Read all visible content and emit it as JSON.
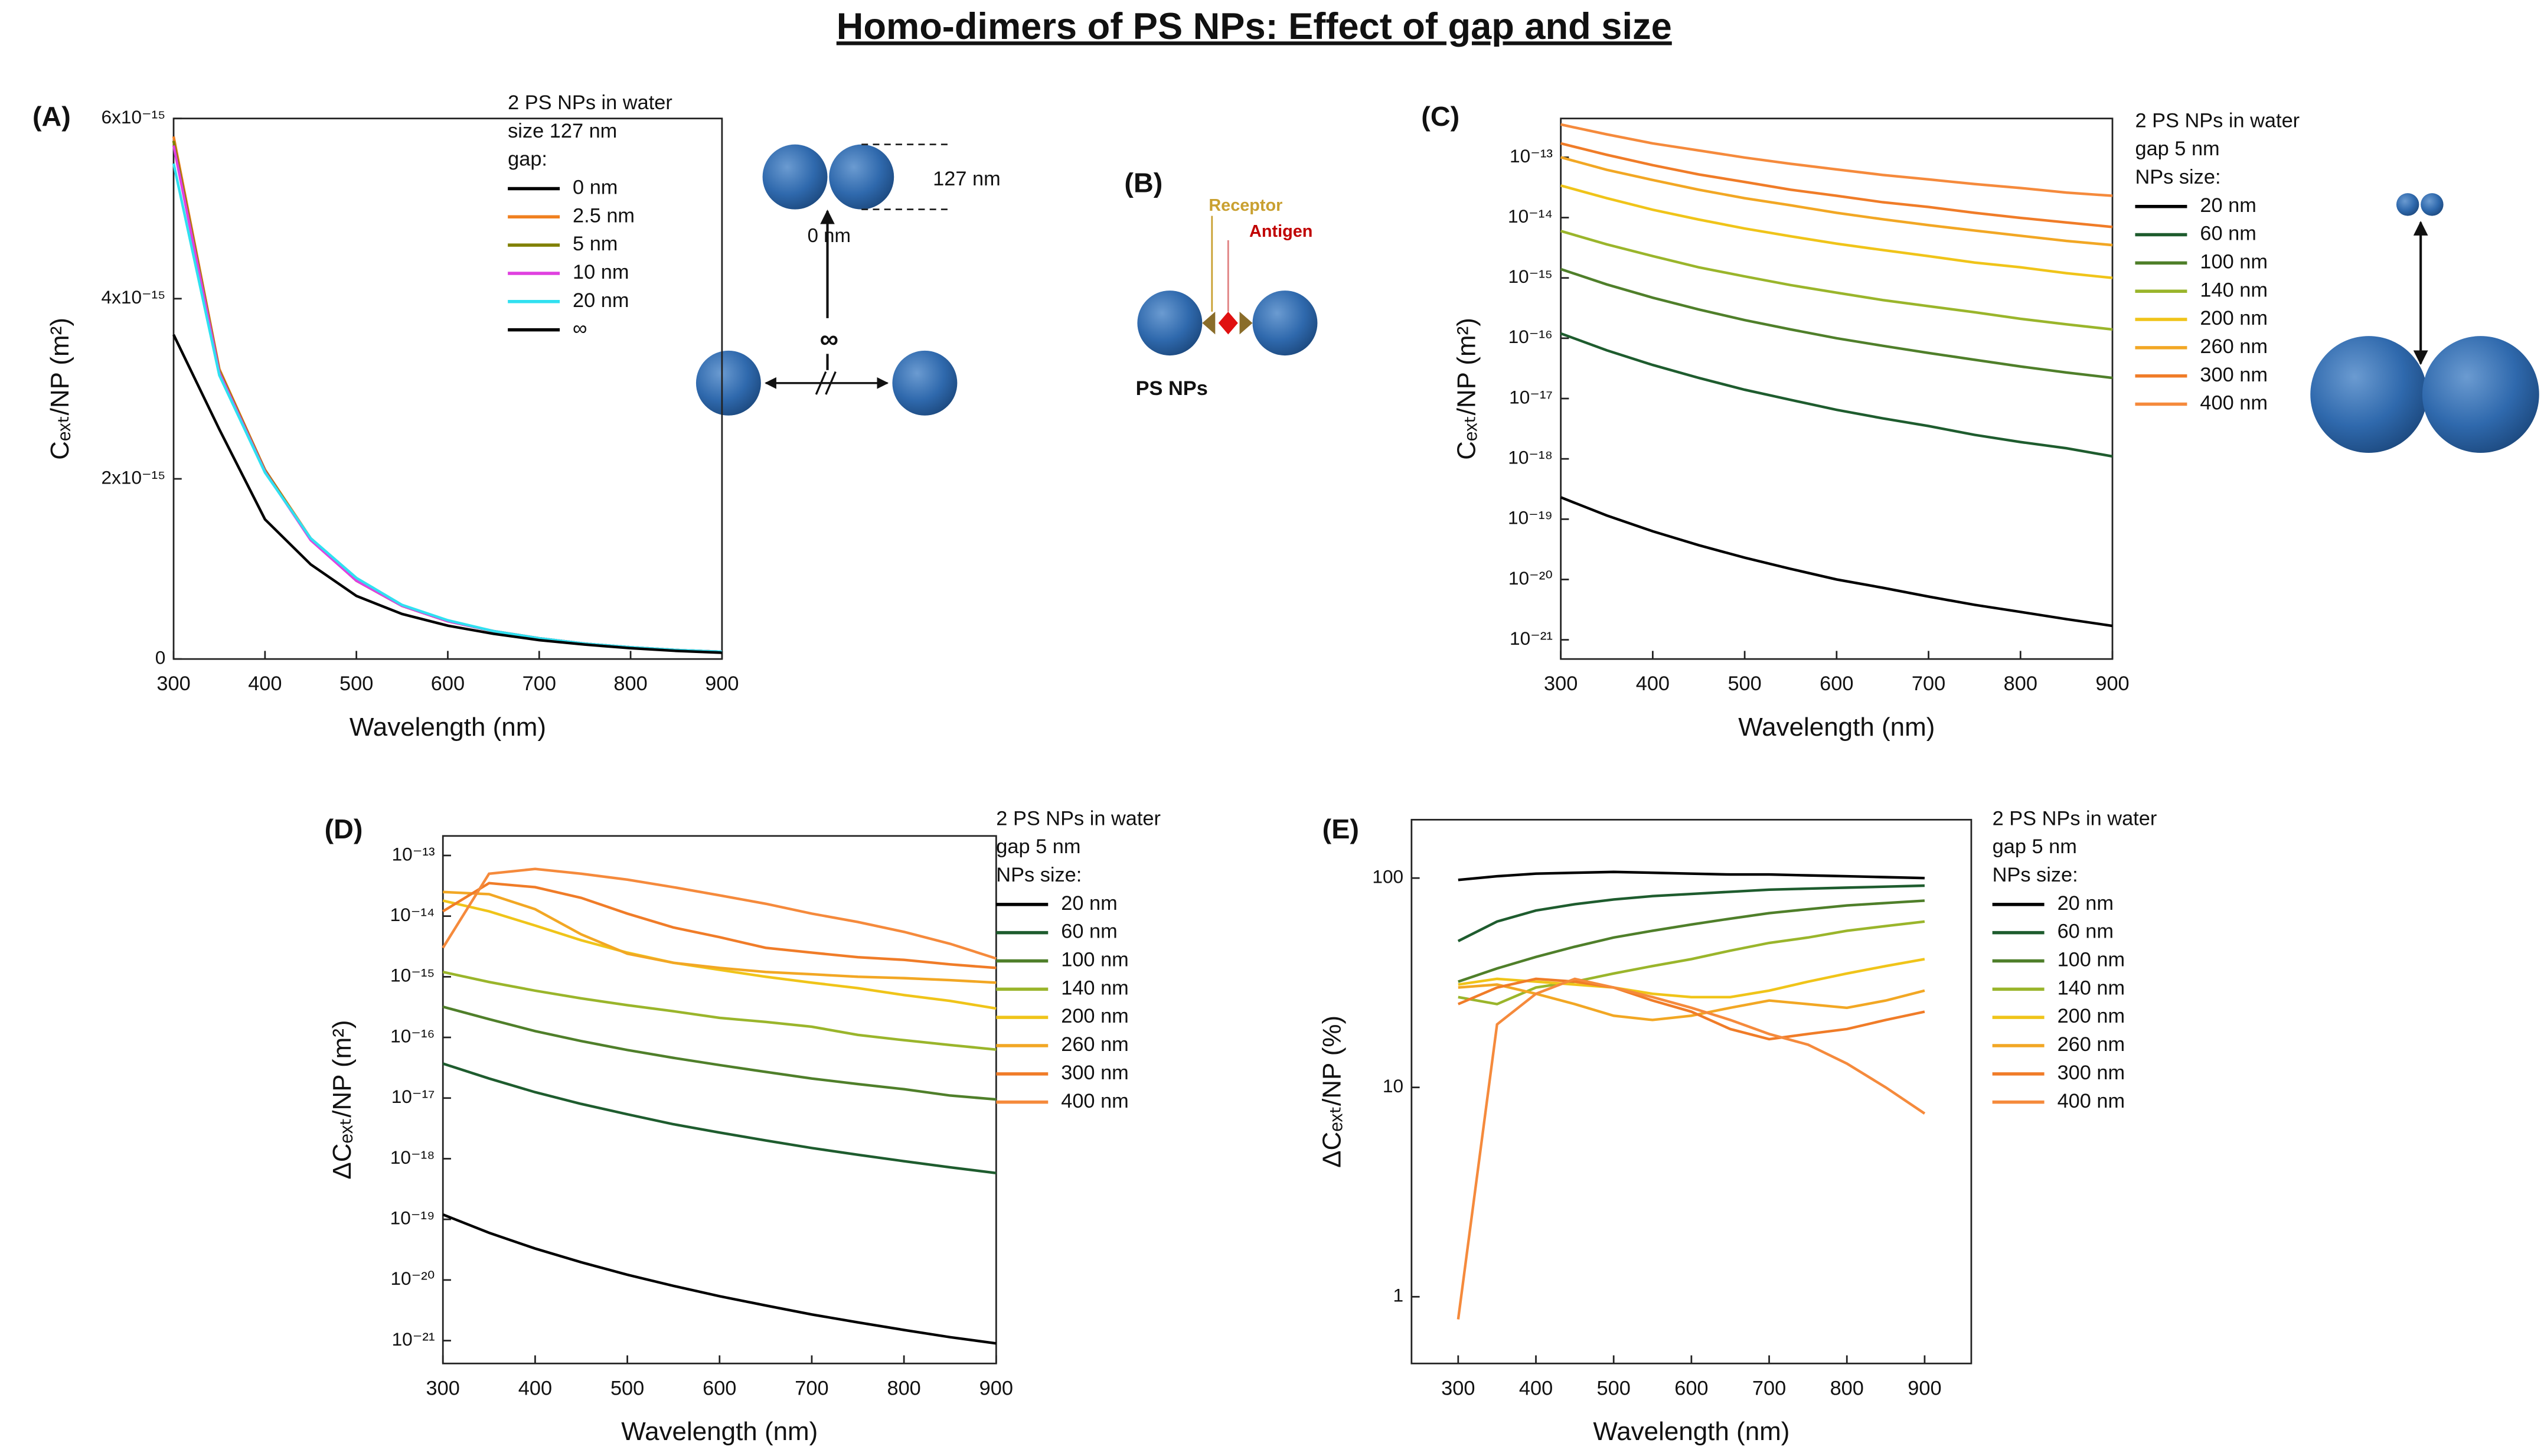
{
  "title": "Homo-dimers of PS NPs: Effect of gap and size",
  "diagrams": {
    "A": {
      "size": "127 nm",
      "gap": "0 nm",
      "far": "∞"
    },
    "B": {
      "label": "(B)",
      "receptor": "Receptor",
      "antigen": "Antigen",
      "particles": "PS NPs"
    }
  },
  "chart_data": [
    {
      "type": "line",
      "label": "(A)",
      "xlabel": "Wavelength (nm)",
      "ylabel": "Cₑₓₜ/NP (m²)",
      "legend_title": [
        "2 PS NPs in water",
        "size 127 nm",
        "gap:"
      ],
      "x": [
        300,
        350,
        400,
        450,
        500,
        550,
        600,
        650,
        700,
        750,
        800,
        850,
        900
      ],
      "xlim": [
        300,
        900
      ],
      "xticks": [
        300,
        400,
        500,
        600,
        700,
        800,
        900
      ],
      "ylim": [
        0,
        6e-15
      ],
      "log_y": false,
      "yticks": [
        0,
        {
          "value": 2e-15,
          "label": "2x10⁻¹⁵"
        },
        {
          "value": 4e-15,
          "label": "4x10⁻¹⁵"
        },
        {
          "value": 6e-15,
          "label": "6x10⁻¹⁵"
        }
      ],
      "series": [
        {
          "name": "0 nm",
          "color": "#000000",
          "values": [
            5.75e-15,
            3.2e-15,
            2.1e-15,
            1.33e-15,
            8.7e-16,
            5.9e-16,
            4.2e-16,
            3.1e-16,
            2.3e-16,
            1.7e-16,
            1.3e-16,
            1e-16,
            8e-17
          ]
        },
        {
          "name": "2.5 nm",
          "color": "#f08020",
          "values": [
            5.8e-15,
            3.22e-15,
            2.1e-15,
            1.34e-15,
            8.8e-16,
            5.9e-16,
            4.2e-16,
            3.1e-16,
            2.3e-16,
            1.7e-16,
            1.3e-16,
            1e-16,
            8e-17
          ]
        },
        {
          "name": "5 nm",
          "color": "#808000",
          "values": [
            5.75e-15,
            3.2e-15,
            2.09e-15,
            1.33e-15,
            8.7e-16,
            5.9e-16,
            4.2e-16,
            3.1e-16,
            2.3e-16,
            1.7e-16,
            1.3e-16,
            1e-16,
            8e-17
          ]
        },
        {
          "name": "10 nm",
          "color": "#e040e0",
          "values": [
            5.7e-15,
            3.18e-15,
            2.08e-15,
            1.32e-15,
            8.7e-16,
            5.9e-16,
            4.2e-16,
            3.1e-16,
            2.3e-16,
            1.7e-16,
            1.3e-16,
            1e-16,
            8e-17
          ]
        },
        {
          "name": "20 nm",
          "color": "#30e0f0",
          "values": [
            5.5e-15,
            3.15e-15,
            2.07e-15,
            1.34e-15,
            9e-16,
            6e-16,
            4.3e-16,
            3.1e-16,
            2.3e-16,
            1.7e-16,
            1.3e-16,
            1e-16,
            8e-17
          ]
        },
        {
          "name": "∞",
          "color": "#000000",
          "values": [
            3.6e-15,
            2.55e-15,
            1.55e-15,
            1.05e-15,
            7e-16,
            5e-16,
            3.7e-16,
            2.8e-16,
            2.1e-16,
            1.6e-16,
            1.2e-16,
            9e-17,
            7e-17
          ]
        }
      ]
    },
    {
      "type": "line",
      "label": "(C)",
      "xlabel": "Wavelength (nm)",
      "ylabel": "Cₑₓₜ/NP (m²)",
      "legend_title": [
        "2 PS NPs in water",
        "gap 5 nm",
        "NPs size:"
      ],
      "x": [
        300,
        350,
        400,
        450,
        500,
        550,
        600,
        650,
        700,
        750,
        800,
        850,
        900
      ],
      "xlim": [
        300,
        900
      ],
      "xticks": [
        300,
        400,
        500,
        600,
        700,
        800,
        900
      ],
      "ylim": [
        4.8e-22,
        4.4e-13
      ],
      "log_y": true,
      "yticks": [
        {
          "value": 1e-21,
          "label": "10⁻²¹"
        },
        {
          "value": 1e-20,
          "label": "10⁻²⁰"
        },
        {
          "value": 1e-19,
          "label": "10⁻¹⁹"
        },
        {
          "value": 1e-18,
          "label": "10⁻¹⁸"
        },
        {
          "value": 1e-17,
          "label": "10⁻¹⁷"
        },
        {
          "value": 1e-16,
          "label": "10⁻¹⁶"
        },
        {
          "value": 1e-15,
          "label": "10⁻¹⁵"
        },
        {
          "value": 1e-14,
          "label": "10⁻¹⁴"
        },
        {
          "value": 1e-13,
          "label": "10⁻¹³"
        }
      ],
      "series": [
        {
          "name": "20 nm",
          "color": "#000000",
          "values": [
            2.3e-19,
            1.15e-19,
            6.3e-20,
            3.7e-20,
            2.3e-20,
            1.5e-20,
            1e-20,
            7.3e-21,
            5.2e-21,
            3.8e-21,
            2.9e-21,
            2.2e-21,
            1.7e-21
          ]
        },
        {
          "name": "60 nm",
          "color": "#1e5c2e",
          "values": [
            1.2e-16,
            6.3e-17,
            3.6e-17,
            2.2e-17,
            1.4e-17,
            9.5e-18,
            6.5e-18,
            4.7e-18,
            3.5e-18,
            2.5e-18,
            1.9e-18,
            1.5e-18,
            1.1e-18
          ]
        },
        {
          "name": "100 nm",
          "color": "#4f7f2a",
          "values": [
            1.4e-15,
            7.8e-16,
            4.7e-16,
            3e-16,
            2e-16,
            1.4e-16,
            1e-16,
            7.5e-17,
            5.7e-17,
            4.4e-17,
            3.4e-17,
            2.7e-17,
            2.2e-17
          ]
        },
        {
          "name": "140 nm",
          "color": "#9ab52b",
          "values": [
            6e-15,
            3.6e-15,
            2.3e-15,
            1.5e-15,
            1.06e-15,
            7.6e-16,
            5.7e-16,
            4.3e-16,
            3.4e-16,
            2.7e-16,
            2.1e-16,
            1.7e-16,
            1.4e-16
          ]
        },
        {
          "name": "200 nm",
          "color": "#f0c419",
          "values": [
            3.4e-14,
            2.1e-14,
            1.35e-14,
            9.3e-15,
            6.6e-15,
            4.9e-15,
            3.7e-15,
            2.9e-15,
            2.3e-15,
            1.8e-15,
            1.5e-15,
            1.2e-15,
            1e-15
          ]
        },
        {
          "name": "260 nm",
          "color": "#f2a724",
          "values": [
            1e-13,
            6.2e-14,
            4.2e-14,
            2.9e-14,
            2.1e-14,
            1.6e-14,
            1.2e-14,
            9.4e-15,
            7.5e-15,
            6.1e-15,
            5e-15,
            4.1e-15,
            3.5e-15
          ]
        },
        {
          "name": "300 nm",
          "color": "#f07c28",
          "values": [
            1.7e-13,
            1.1e-13,
            7.4e-14,
            5.2e-14,
            3.9e-14,
            2.9e-14,
            2.3e-14,
            1.8e-14,
            1.5e-14,
            1.2e-14,
            9.9e-15,
            8.3e-15,
            7e-15
          ]
        },
        {
          "name": "400 nm",
          "color": "#f58a3c",
          "values": [
            3.5e-13,
            2.4e-13,
            1.7e-13,
            1.3e-13,
            9.9e-14,
            7.8e-14,
            6.3e-14,
            5.1e-14,
            4.3e-14,
            3.6e-14,
            3.1e-14,
            2.6e-14,
            2.3e-14
          ]
        }
      ]
    },
    {
      "type": "line",
      "label": "(D)",
      "xlabel": "Wavelength (nm)",
      "ylabel": "ΔCₑₓₜ/NP (m²)",
      "legend_title": [
        "2 PS NPs in water",
        "gap 5 nm",
        "NPs size:"
      ],
      "x": [
        300,
        350,
        400,
        450,
        500,
        550,
        600,
        650,
        700,
        750,
        800,
        850,
        900
      ],
      "xlim": [
        300,
        900
      ],
      "xticks": [
        300,
        400,
        500,
        600,
        700,
        800,
        900
      ],
      "ylim": [
        4.2e-22,
        2.1e-13
      ],
      "log_y": true,
      "yticks": [
        {
          "value": 1e-21,
          "label": "10⁻²¹"
        },
        {
          "value": 1e-20,
          "label": "10⁻²⁰"
        },
        {
          "value": 1e-19,
          "label": "10⁻¹⁹"
        },
        {
          "value": 1e-18,
          "label": "10⁻¹⁸"
        },
        {
          "value": 1e-17,
          "label": "10⁻¹⁷"
        },
        {
          "value": 1e-16,
          "label": "10⁻¹⁶"
        },
        {
          "value": 1e-15,
          "label": "10⁻¹⁵"
        },
        {
          "value": 1e-14,
          "label": "10⁻¹⁴"
        },
        {
          "value": 1e-13,
          "label": "10⁻¹³"
        }
      ],
      "series": [
        {
          "name": "20 nm",
          "color": "#000000",
          "values": [
            1.2e-19,
            6e-20,
            3.3e-20,
            1.96e-20,
            1.22e-20,
            8e-21,
            5.4e-21,
            3.8e-21,
            2.7e-21,
            2e-21,
            1.5e-21,
            1.14e-21,
            9e-22
          ]
        },
        {
          "name": "60 nm",
          "color": "#1e5c2e",
          "values": [
            3.7e-17,
            2.1e-17,
            1.25e-17,
            8e-18,
            5.4e-18,
            3.7e-18,
            2.7e-18,
            2e-18,
            1.5e-18,
            1.16e-18,
            9.1e-19,
            7.2e-19,
            5.8e-19
          ]
        },
        {
          "name": "100 nm",
          "color": "#4f7f2a",
          "values": [
            3.2e-16,
            2e-16,
            1.27e-16,
            8.7e-17,
            6.2e-17,
            4.6e-17,
            3.5e-17,
            2.7e-17,
            2.1e-17,
            1.7e-17,
            1.4e-17,
            1.1e-17,
            9.5e-18
          ]
        },
        {
          "name": "140 nm",
          "color": "#9ab52b",
          "values": [
            1.2e-15,
            8.2e-16,
            5.9e-16,
            4.4e-16,
            3.4e-16,
            2.7e-16,
            2.1e-16,
            1.8e-16,
            1.5e-16,
            1.1e-16,
            9e-17,
            7.5e-17,
            6.3e-17
          ]
        },
        {
          "name": "200 nm",
          "color": "#f0c419",
          "values": [
            1.8e-14,
            1.2e-14,
            7e-15,
            4e-15,
            2.5e-15,
            1.7e-15,
            1.3e-15,
            1e-15,
            8e-16,
            6.5e-16,
            5e-16,
            4e-16,
            3e-16
          ]
        },
        {
          "name": "260 nm",
          "color": "#f2a724",
          "values": [
            2.5e-14,
            2.3e-14,
            1.3e-14,
            5e-15,
            2.4e-15,
            1.7e-15,
            1.4e-15,
            1.2e-15,
            1.1e-15,
            1e-15,
            9.5e-16,
            8.8e-16,
            8e-16
          ]
        },
        {
          "name": "300 nm",
          "color": "#f07c28",
          "values": [
            1.2e-14,
            3.5e-14,
            3e-14,
            2e-14,
            1.1e-14,
            6.5e-15,
            4.5e-15,
            3e-15,
            2.5e-15,
            2.1e-15,
            1.9e-15,
            1.6e-15,
            1.4e-15
          ]
        },
        {
          "name": "400 nm",
          "color": "#f58a3c",
          "values": [
            3e-15,
            5e-14,
            6e-14,
            5e-14,
            4e-14,
            3e-14,
            2.2e-14,
            1.6e-14,
            1.1e-14,
            8e-15,
            5.5e-15,
            3.5e-15,
            2e-15
          ]
        }
      ]
    },
    {
      "type": "line",
      "label": "(E)",
      "xlabel": "Wavelength (nm)",
      "ylabel": "ΔCₑₓₜ/NP (%)",
      "legend_title": [
        "2 PS NPs in water",
        "gap 5 nm",
        "NPs size:"
      ],
      "x": [
        300,
        350,
        400,
        450,
        500,
        550,
        600,
        650,
        700,
        750,
        800,
        850,
        900
      ],
      "xlim": [
        240,
        960
      ],
      "xticks": [
        300,
        400,
        500,
        600,
        700,
        800,
        900
      ],
      "ylim": [
        0.48,
        190
      ],
      "log_y": true,
      "yticks": [
        1,
        10,
        100
      ],
      "series": [
        {
          "name": "20 nm",
          "color": "#000000",
          "values": [
            98,
            102,
            105,
            106,
            107,
            106,
            105,
            104,
            104,
            103,
            102,
            101,
            100
          ]
        },
        {
          "name": "60 nm",
          "color": "#1e5c2e",
          "values": [
            50,
            62,
            70,
            75,
            79,
            82,
            84,
            86,
            88,
            89,
            90,
            91,
            92
          ]
        },
        {
          "name": "100 nm",
          "color": "#4f7f2a",
          "values": [
            32,
            37,
            42,
            47,
            52,
            56,
            60,
            64,
            68,
            71,
            74,
            76,
            78
          ]
        },
        {
          "name": "140 nm",
          "color": "#9ab52b",
          "values": [
            27,
            25,
            30,
            32,
            35,
            38,
            41,
            45,
            49,
            52,
            56,
            59,
            62
          ]
        },
        {
          "name": "200 nm",
          "color": "#f0c419",
          "values": [
            31,
            33,
            32,
            31,
            30,
            28,
            27,
            27,
            29,
            32,
            35,
            38,
            41
          ]
        },
        {
          "name": "260 nm",
          "color": "#f2a724",
          "values": [
            30,
            31,
            28,
            25,
            22,
            21,
            22,
            24,
            26,
            25,
            24,
            26,
            29
          ]
        },
        {
          "name": "300 nm",
          "color": "#f07c28",
          "values": [
            25,
            30,
            33,
            32,
            30,
            26,
            23,
            19,
            17,
            18,
            19,
            21,
            23
          ]
        },
        {
          "name": "400 nm",
          "color": "#f58a3c",
          "values": [
            0.78,
            20,
            28,
            33,
            30,
            27,
            24,
            21,
            18,
            16,
            13,
            10,
            7.5
          ]
        }
      ]
    }
  ]
}
